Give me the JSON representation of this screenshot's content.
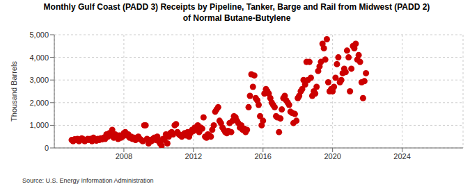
{
  "chart_data": {
    "type": "scatter",
    "title": "Monthly Gulf Coast (PADD 3) Receipts by Pipeline, Tanker, Barge and Rail from Midwest (PADD 2) of Normal Butane-Butylene",
    "source": "Source: U.S. Energy Information Administration",
    "y_label": "Thousand Barrels",
    "color": "#cc0000",
    "marker": "circle",
    "grid": true,
    "xlim": [
      2004,
      2027.5
    ],
    "xticks": [
      2008,
      2012,
      2016,
      2020,
      2024
    ],
    "ylim": [
      0,
      5000
    ],
    "yticks": [
      0,
      {
        "value": 1000,
        "label": "1,000"
      },
      {
        "value": 2000,
        "label": "2,000"
      },
      {
        "value": 3000,
        "label": "3,000"
      },
      {
        "value": 4000,
        "label": "4,000"
      },
      {
        "value": 5000,
        "label": "5,000"
      }
    ],
    "x": [
      2005.0,
      2005.08,
      2005.17,
      2005.25,
      2005.33,
      2005.42,
      2005.5,
      2005.58,
      2005.67,
      2005.75,
      2005.83,
      2005.92,
      2006.0,
      2006.08,
      2006.17,
      2006.25,
      2006.33,
      2006.42,
      2006.5,
      2006.58,
      2006.67,
      2006.75,
      2006.83,
      2006.92,
      2007.0,
      2007.08,
      2007.17,
      2007.25,
      2007.33,
      2007.42,
      2007.5,
      2007.58,
      2007.67,
      2007.75,
      2007.83,
      2007.92,
      2008.0,
      2008.08,
      2008.17,
      2008.25,
      2008.33,
      2008.42,
      2008.5,
      2008.58,
      2008.67,
      2008.75,
      2008.83,
      2008.92,
      2009.0,
      2009.08,
      2009.17,
      2009.25,
      2009.33,
      2009.42,
      2009.5,
      2009.58,
      2009.67,
      2009.75,
      2009.83,
      2009.92,
      2010.0,
      2010.08,
      2010.17,
      2010.25,
      2010.33,
      2010.42,
      2010.5,
      2010.58,
      2010.67,
      2010.75,
      2010.83,
      2010.92,
      2011.0,
      2011.08,
      2011.17,
      2011.25,
      2011.33,
      2011.42,
      2011.5,
      2011.58,
      2011.67,
      2011.75,
      2011.83,
      2011.92,
      2012.0,
      2012.08,
      2012.17,
      2012.25,
      2012.33,
      2012.42,
      2012.5,
      2012.58,
      2012.67,
      2012.75,
      2012.83,
      2012.92,
      2013.0,
      2013.08,
      2013.17,
      2013.25,
      2013.33,
      2013.42,
      2013.5,
      2013.58,
      2013.67,
      2013.75,
      2013.83,
      2013.92,
      2014.0,
      2014.08,
      2014.17,
      2014.25,
      2014.33,
      2014.42,
      2014.5,
      2014.58,
      2014.67,
      2014.75,
      2014.83,
      2014.92,
      2015.0,
      2015.08,
      2015.17,
      2015.25,
      2015.33,
      2015.42,
      2015.5,
      2015.58,
      2015.67,
      2015.75,
      2015.83,
      2015.92,
      2016.0,
      2016.08,
      2016.17,
      2016.25,
      2016.33,
      2016.42,
      2016.5,
      2016.58,
      2016.67,
      2016.75,
      2016.83,
      2016.92,
      2017.0,
      2017.08,
      2017.17,
      2017.25,
      2017.33,
      2017.42,
      2017.5,
      2017.58,
      2017.67,
      2017.75,
      2017.83,
      2017.92,
      2018.0,
      2018.08,
      2018.17,
      2018.25,
      2018.33,
      2018.42,
      2018.5,
      2018.58,
      2018.67,
      2018.75,
      2018.83,
      2018.92,
      2019.0,
      2019.08,
      2019.17,
      2019.25,
      2019.33,
      2019.42,
      2019.5,
      2019.58,
      2019.67,
      2019.75,
      2019.83,
      2019.92,
      2020.0,
      2020.08,
      2020.17,
      2020.25,
      2020.33,
      2020.42,
      2020.5,
      2020.58,
      2020.67,
      2020.75,
      2020.83,
      2020.92,
      2021.0,
      2021.08,
      2021.17,
      2021.25,
      2021.33,
      2021.42,
      2021.5,
      2021.58,
      2021.67,
      2021.75,
      2021.83,
      2021.92
    ],
    "values": [
      350,
      300,
      380,
      350,
      400,
      300,
      350,
      420,
      380,
      300,
      350,
      400,
      350,
      400,
      300,
      450,
      380,
      320,
      400,
      350,
      420,
      380,
      450,
      400,
      600,
      500,
      650,
      550,
      800,
      450,
      600,
      500,
      400,
      550,
      450,
      500,
      650,
      700,
      550,
      600,
      450,
      500,
      400,
      450,
      350,
      450,
      500,
      400,
      350,
      300,
      1000,
      1000,
      400,
      200,
      350,
      300,
      400,
      450,
      350,
      500,
      300,
      200,
      100,
      400,
      350,
      600,
      200,
      500,
      650,
      700,
      600,
      1000,
      1050,
      700,
      600,
      550,
      500,
      600,
      650,
      550,
      700,
      500,
      650,
      800,
      750,
      900,
      800,
      1000,
      700,
      900,
      850,
      1350,
      500,
      450,
      600,
      550,
      500,
      800,
      1000,
      1600,
      1700,
      1800,
      1200,
      1100,
      900,
      800,
      700,
      650,
      750,
      1100,
      700,
      1200,
      1400,
      1350,
      1200,
      1100,
      900,
      1000,
      800,
      850,
      700,
      800,
      1800,
      2300,
      3250,
      2700,
      3200,
      2200,
      2100,
      1900,
      1400,
      1000,
      1200,
      2400,
      2600,
      2500,
      2400,
      2200,
      2000,
      1900,
      1800,
      1400,
      1350,
      700,
      1300,
      1700,
      2200,
      2300,
      2100,
      2000,
      1900,
      1600,
      1550,
      1100,
      1500,
      1200,
      2200,
      2300,
      2500,
      2600,
      3000,
      2800,
      3800,
      3000,
      3800,
      3100,
      2300,
      2500,
      2400,
      2700,
      3400,
      3600,
      3800,
      4600,
      4400,
      3900,
      4800,
      2900,
      2500,
      2600,
      2500,
      2700,
      3100,
      3700,
      4000,
      2900,
      3000,
      3300,
      3500,
      3350,
      4300,
      4000,
      2500,
      3500,
      4500,
      4400,
      4600,
      3900,
      4100,
      3800,
      2900,
      2200,
      2950,
      3300
    ]
  }
}
